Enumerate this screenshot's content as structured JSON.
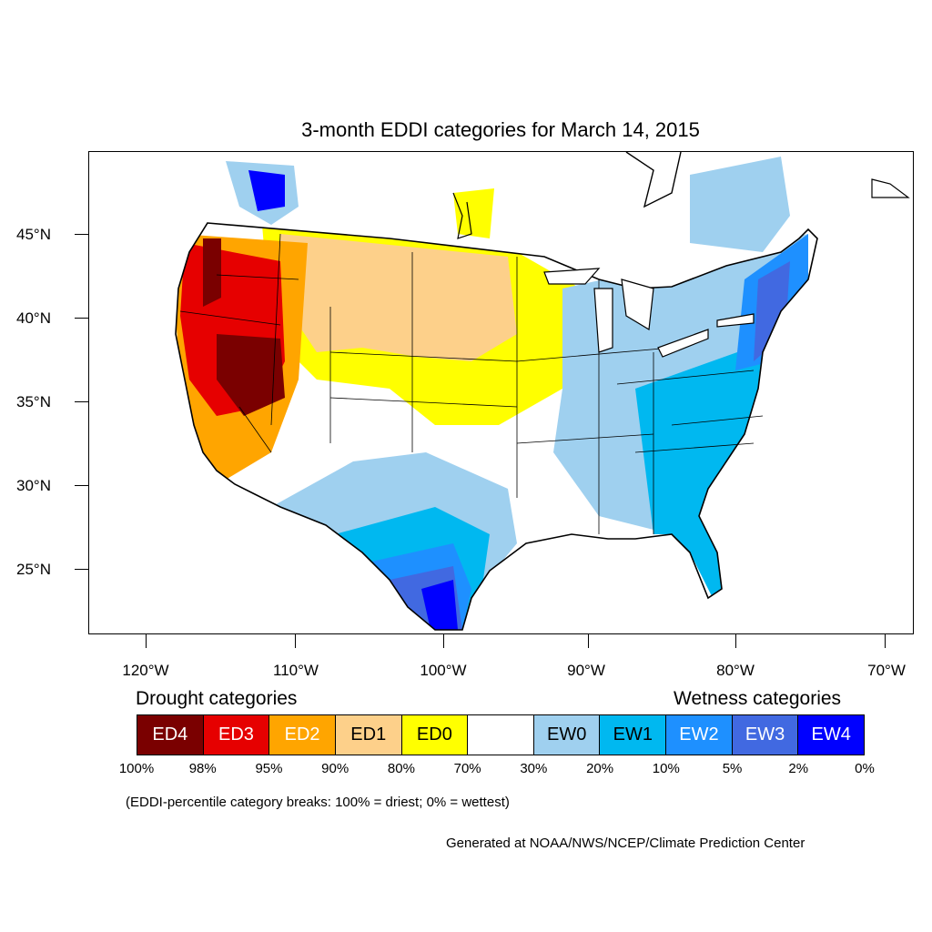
{
  "title": "3-month EDDI categories for March 14, 2015",
  "map": {
    "latitude_labels": [
      "45°N",
      "40°N",
      "35°N",
      "30°N",
      "25°N"
    ],
    "longitude_labels": [
      "120°W",
      "110°W",
      "100°W",
      "90°W",
      "80°W",
      "70°W"
    ],
    "map_type": "choropleth",
    "region": "Contiguous United States with parts of Canada and Mexico"
  },
  "legend": {
    "drought_heading": "Drought categories",
    "wetness_heading": "Wetness categories",
    "categories": [
      {
        "label": "ED4",
        "color": "#7a0000",
        "text_color": "#ffffff"
      },
      {
        "label": "ED3",
        "color": "#e60000",
        "text_color": "#ffffff"
      },
      {
        "label": "ED2",
        "color": "#ffa500",
        "text_color": "#ffffff"
      },
      {
        "label": "ED1",
        "color": "#fdd08a",
        "text_color": "#000000"
      },
      {
        "label": "ED0",
        "color": "#ffff00",
        "text_color": "#000000"
      },
      {
        "label": "",
        "color": "#ffffff",
        "text_color": "#000000"
      },
      {
        "label": "EW0",
        "color": "#9fd0ef",
        "text_color": "#000000"
      },
      {
        "label": "EW1",
        "color": "#00b8f0",
        "text_color": "#000000"
      },
      {
        "label": "EW2",
        "color": "#1e90ff",
        "text_color": "#ffffff"
      },
      {
        "label": "EW3",
        "color": "#4169e1",
        "text_color": "#ffffff"
      },
      {
        "label": "EW4",
        "color": "#0000ff",
        "text_color": "#ffffff"
      }
    ],
    "breaks": [
      "100%",
      "98%",
      "95%",
      "90%",
      "80%",
      "70%",
      "30%",
      "20%",
      "10%",
      "5%",
      "2%",
      "0%"
    ],
    "note": "(EDDI-percentile category breaks: 100% = driest; 0% = wettest)"
  },
  "credit": "Generated at NOAA/NWS/NCEP/Climate Prediction Center"
}
